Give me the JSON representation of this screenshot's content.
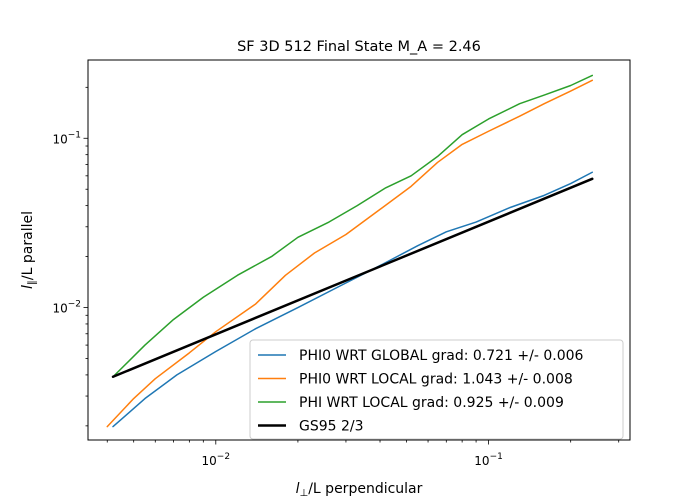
{
  "chart_data": {
    "type": "line",
    "title": "SF 3D 512 Final State M_A = 2.46",
    "xlabel_main": "l",
    "xlabel_sub": "⊥",
    "xlabel_rest": "/L perpendicular",
    "ylabel_main": "l",
    "ylabel_sub": "∥",
    "ylabel_rest": "/L parallel",
    "xscale": "log",
    "yscale": "log",
    "xlim": [
      0.0034,
      0.33
    ],
    "ylim": [
      0.00165,
      0.29
    ],
    "x_ticks": [
      {
        "value": 0.01,
        "base": "10",
        "exp": "−2"
      },
      {
        "value": 0.1,
        "base": "10",
        "exp": "−1"
      }
    ],
    "y_ticks": [
      {
        "value": 0.01,
        "base": "10",
        "exp": "−2"
      },
      {
        "value": 0.1,
        "base": "10",
        "exp": "−1"
      }
    ],
    "grid": false,
    "legend_position": "lower-right",
    "series": [
      {
        "name": "PHI0 WRT GLOBAL grad: 0.721 +/-  0.006",
        "color": "#1f77b4",
        "line_width": 1.5,
        "points": [
          [
            0.0042,
            0.00198
          ],
          [
            0.0055,
            0.0029
          ],
          [
            0.0072,
            0.004
          ],
          [
            0.01,
            0.0055
          ],
          [
            0.014,
            0.0075
          ],
          [
            0.02,
            0.01
          ],
          [
            0.028,
            0.0132
          ],
          [
            0.04,
            0.0177
          ],
          [
            0.055,
            0.0232
          ],
          [
            0.07,
            0.028
          ],
          [
            0.09,
            0.032
          ],
          [
            0.12,
            0.039
          ],
          [
            0.16,
            0.046
          ],
          [
            0.2,
            0.054
          ],
          [
            0.24,
            0.063
          ]
        ]
      },
      {
        "name": "PHI0 WRT LOCAL grad: 1.043 +/-  0.008",
        "color": "#ff7f0e",
        "line_width": 1.5,
        "points": [
          [
            0.004,
            0.00198
          ],
          [
            0.005,
            0.0029
          ],
          [
            0.006,
            0.0038
          ],
          [
            0.008,
            0.0054
          ],
          [
            0.01,
            0.0072
          ],
          [
            0.014,
            0.0105
          ],
          [
            0.018,
            0.0155
          ],
          [
            0.023,
            0.021
          ],
          [
            0.03,
            0.027
          ],
          [
            0.04,
            0.038
          ],
          [
            0.052,
            0.052
          ],
          [
            0.065,
            0.072
          ],
          [
            0.08,
            0.092
          ],
          [
            0.1,
            0.11
          ],
          [
            0.13,
            0.135
          ],
          [
            0.16,
            0.16
          ],
          [
            0.2,
            0.19
          ],
          [
            0.24,
            0.22
          ]
        ]
      },
      {
        "name": "PHI WRT LOCAL grad: 0.925 +/-  0.009",
        "color": "#2ca02c",
        "line_width": 1.5,
        "points": [
          [
            0.0042,
            0.0039
          ],
          [
            0.0055,
            0.006
          ],
          [
            0.007,
            0.0085
          ],
          [
            0.009,
            0.0115
          ],
          [
            0.012,
            0.0155
          ],
          [
            0.016,
            0.02
          ],
          [
            0.02,
            0.026
          ],
          [
            0.026,
            0.032
          ],
          [
            0.033,
            0.04
          ],
          [
            0.042,
            0.051
          ],
          [
            0.052,
            0.06
          ],
          [
            0.065,
            0.078
          ],
          [
            0.08,
            0.105
          ],
          [
            0.1,
            0.13
          ],
          [
            0.13,
            0.16
          ],
          [
            0.16,
            0.18
          ],
          [
            0.2,
            0.205
          ],
          [
            0.24,
            0.235
          ]
        ]
      },
      {
        "name": "GS95 2/3",
        "color": "#000000",
        "line_width": 2.5,
        "points": [
          [
            0.0042,
            0.0039
          ],
          [
            0.24,
            0.0576
          ]
        ]
      }
    ]
  }
}
